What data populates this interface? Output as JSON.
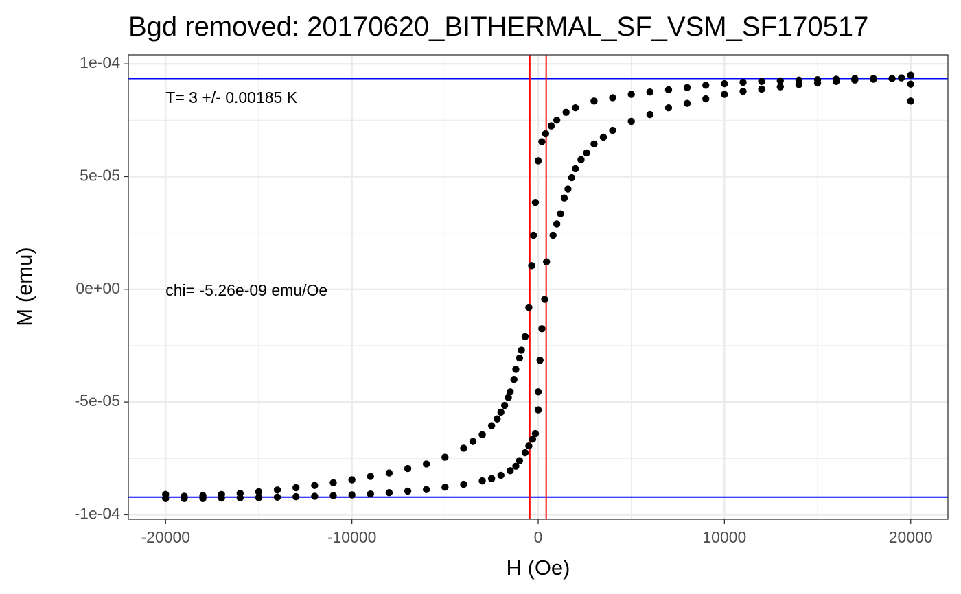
{
  "chart_data": {
    "type": "scatter",
    "title": "Bgd removed: 20170620_BITHERMAL_SF_VSM_SF170517",
    "xlabel": "H (Oe)",
    "ylabel": "M (emu)",
    "xlim": [
      -22000,
      22000
    ],
    "ylim": [
      -0.000102,
      0.000104
    ],
    "x_ticks": [
      -20000,
      -10000,
      0,
      10000,
      20000
    ],
    "x_tick_labels": [
      "-20000",
      "-10000",
      "0",
      "10000",
      "20000"
    ],
    "y_ticks": [
      -0.0001,
      -5e-05,
      0,
      5e-05,
      0.0001
    ],
    "y_tick_labels": [
      "-1e-04",
      "-5e-05",
      "0e+00",
      "5e-05",
      "1e-04"
    ],
    "grid": true,
    "annotations": [
      {
        "text": "T= 3 +/- 0.00185 K",
        "x": -20000,
        "y": 8.45e-05
      },
      {
        "text": "chi= -5.26e-09 emu/Oe",
        "x": -20000,
        "y": -1e-06
      }
    ],
    "hlines": [
      9.35e-05,
      -9.22e-05
    ],
    "vlines": [
      -450,
      430
    ],
    "hline_color": "#0000ff",
    "vline_color": "#ff0000",
    "point_color": "#000000",
    "series": [
      {
        "values": [
          {
            "x": 20000,
            "y": 9.5e-05
          },
          {
            "x": 20000,
            "y": 8.35e-05
          },
          {
            "x": 19500,
            "y": 9.38e-05
          },
          {
            "x": 19000,
            "y": 9.35e-05
          },
          {
            "x": 18000,
            "y": 9.35e-05
          },
          {
            "x": 17000,
            "y": 9.35e-05
          },
          {
            "x": 16000,
            "y": 9.32e-05
          },
          {
            "x": 15000,
            "y": 9.3e-05
          },
          {
            "x": 14000,
            "y": 9.28e-05
          },
          {
            "x": 13000,
            "y": 9.25e-05
          },
          {
            "x": 12000,
            "y": 9.22e-05
          },
          {
            "x": 11000,
            "y": 9.18e-05
          },
          {
            "x": 10000,
            "y": 9.12e-05
          },
          {
            "x": 9000,
            "y": 9.05e-05
          },
          {
            "x": 8000,
            "y": 8.95e-05
          },
          {
            "x": 7000,
            "y": 8.85e-05
          },
          {
            "x": 6000,
            "y": 8.75e-05
          },
          {
            "x": 5000,
            "y": 8.65e-05
          },
          {
            "x": 4000,
            "y": 8.5e-05
          },
          {
            "x": 3000,
            "y": 8.35e-05
          },
          {
            "x": 2000,
            "y": 8.05e-05
          },
          {
            "x": 1500,
            "y": 7.85e-05
          },
          {
            "x": 1000,
            "y": 7.5e-05
          },
          {
            "x": 700,
            "y": 7.25e-05
          },
          {
            "x": 400,
            "y": 6.9e-05
          },
          {
            "x": 200,
            "y": 6.55e-05
          },
          {
            "x": 0,
            "y": 5.7e-05
          },
          {
            "x": -150,
            "y": 3.85e-05
          },
          {
            "x": -250,
            "y": 2.4e-05
          },
          {
            "x": -350,
            "y": 1.05e-05
          },
          {
            "x": -500,
            "y": -8e-06
          },
          {
            "x": -700,
            "y": -2.1e-05
          },
          {
            "x": -900,
            "y": -2.7e-05
          },
          {
            "x": -1000,
            "y": -3.05e-05
          },
          {
            "x": -1200,
            "y": -3.55e-05
          },
          {
            "x": -1300,
            "y": -4e-05
          },
          {
            "x": -1500,
            "y": -4.55e-05
          },
          {
            "x": -1600,
            "y": -4.8e-05
          },
          {
            "x": -1800,
            "y": -5.15e-05
          },
          {
            "x": -2000,
            "y": -5.45e-05
          },
          {
            "x": -2200,
            "y": -5.75e-05
          },
          {
            "x": -2500,
            "y": -6.05e-05
          },
          {
            "x": -3000,
            "y": -6.45e-05
          },
          {
            "x": -3500,
            "y": -6.75e-05
          },
          {
            "x": -4000,
            "y": -7.05e-05
          },
          {
            "x": -5000,
            "y": -7.45e-05
          },
          {
            "x": -6000,
            "y": -7.75e-05
          },
          {
            "x": -7000,
            "y": -7.95e-05
          },
          {
            "x": -8000,
            "y": -8.15e-05
          },
          {
            "x": -9000,
            "y": -8.3e-05
          },
          {
            "x": -10000,
            "y": -8.45e-05
          },
          {
            "x": -11000,
            "y": -8.58e-05
          },
          {
            "x": -12000,
            "y": -8.7e-05
          },
          {
            "x": -13000,
            "y": -8.8e-05
          },
          {
            "x": -14000,
            "y": -8.9e-05
          },
          {
            "x": -15000,
            "y": -8.98e-05
          },
          {
            "x": -16000,
            "y": -9.05e-05
          },
          {
            "x": -17000,
            "y": -9.1e-05
          },
          {
            "x": -18000,
            "y": -9.15e-05
          },
          {
            "x": -19000,
            "y": -9.18e-05
          },
          {
            "x": -20000,
            "y": -9.1e-05
          },
          {
            "x": -20000,
            "y": -9.28e-05
          },
          {
            "x": -19000,
            "y": -9.28e-05
          },
          {
            "x": -18000,
            "y": -9.28e-05
          },
          {
            "x": -17000,
            "y": -9.26e-05
          },
          {
            "x": -16000,
            "y": -9.25e-05
          },
          {
            "x": -15000,
            "y": -9.24e-05
          },
          {
            "x": -14000,
            "y": -9.22e-05
          },
          {
            "x": -13000,
            "y": -9.2e-05
          },
          {
            "x": -12000,
            "y": -9.18e-05
          },
          {
            "x": -11000,
            "y": -9.15e-05
          },
          {
            "x": -10000,
            "y": -9.12e-05
          },
          {
            "x": -9000,
            "y": -9.08e-05
          },
          {
            "x": -8000,
            "y": -9.02e-05
          },
          {
            "x": -7000,
            "y": -8.95e-05
          },
          {
            "x": -6000,
            "y": -8.88e-05
          },
          {
            "x": -5000,
            "y": -8.78e-05
          },
          {
            "x": -4000,
            "y": -8.65e-05
          },
          {
            "x": -3000,
            "y": -8.5e-05
          },
          {
            "x": -2500,
            "y": -8.4e-05
          },
          {
            "x": -2000,
            "y": -8.25e-05
          },
          {
            "x": -1500,
            "y": -8.05e-05
          },
          {
            "x": -1200,
            "y": -7.85e-05
          },
          {
            "x": -1000,
            "y": -7.6e-05
          },
          {
            "x": -700,
            "y": -7.25e-05
          },
          {
            "x": -500,
            "y": -6.95e-05
          },
          {
            "x": -300,
            "y": -6.65e-05
          },
          {
            "x": -150,
            "y": -6.4e-05
          },
          {
            "x": 0,
            "y": -5.35e-05
          },
          {
            "x": 0,
            "y": -4.55e-05
          },
          {
            "x": 100,
            "y": -3.15e-05
          },
          {
            "x": 200,
            "y": -1.75e-05
          },
          {
            "x": 350,
            "y": -4.5e-06
          },
          {
            "x": 450,
            "y": 1.22e-05
          },
          {
            "x": 800,
            "y": 2.4e-05
          },
          {
            "x": 1000,
            "y": 2.9e-05
          },
          {
            "x": 1200,
            "y": 3.35e-05
          },
          {
            "x": 1400,
            "y": 4.05e-05
          },
          {
            "x": 1600,
            "y": 4.45e-05
          },
          {
            "x": 1800,
            "y": 4.95e-05
          },
          {
            "x": 2000,
            "y": 5.35e-05
          },
          {
            "x": 2300,
            "y": 5.75e-05
          },
          {
            "x": 2600,
            "y": 6.05e-05
          },
          {
            "x": 3000,
            "y": 6.45e-05
          },
          {
            "x": 3500,
            "y": 6.75e-05
          },
          {
            "x": 4000,
            "y": 7.05e-05
          },
          {
            "x": 5000,
            "y": 7.45e-05
          },
          {
            "x": 6000,
            "y": 7.75e-05
          },
          {
            "x": 7000,
            "y": 8.05e-05
          },
          {
            "x": 8000,
            "y": 8.25e-05
          },
          {
            "x": 9000,
            "y": 8.45e-05
          },
          {
            "x": 10000,
            "y": 8.65e-05
          },
          {
            "x": 11000,
            "y": 8.78e-05
          },
          {
            "x": 12000,
            "y": 8.88e-05
          },
          {
            "x": 13000,
            "y": 8.98e-05
          },
          {
            "x": 14000,
            "y": 9.08e-05
          },
          {
            "x": 15000,
            "y": 9.15e-05
          },
          {
            "x": 16000,
            "y": 9.22e-05
          },
          {
            "x": 17000,
            "y": 9.28e-05
          },
          {
            "x": 18000,
            "y": 9.32e-05
          },
          {
            "x": 19000,
            "y": 9.35e-05
          },
          {
            "x": 20000,
            "y": 9.1e-05
          }
        ]
      }
    ]
  }
}
